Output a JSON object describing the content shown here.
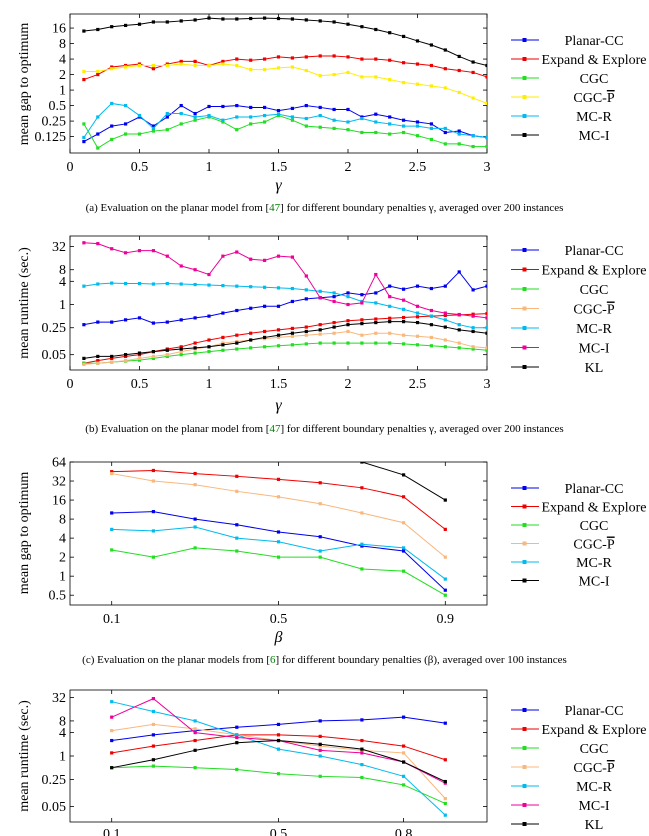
{
  "captions": [
    {
      "prefix": "(a) Evaluation on the planar model from [",
      "ref": "47",
      "suffix": "] for different boundary penalties γ, averaged over 200 instances"
    },
    {
      "prefix": "(b) Evaluation on the planar model from [",
      "ref": "47",
      "suffix": "] for different boundary penalties γ, averaged over 200 instances"
    },
    {
      "prefix": "(c) Evaluation on the planar models from [",
      "ref": "6",
      "suffix": "] for different boundary penalties (β), averaged over 100 instances"
    }
  ],
  "colors": {
    "Planar-CC": "#0000ee",
    "Expand & Explore": "#ee0000",
    "CGC": "#22dd22",
    "CGC-P": "#ffee00",
    "CGC-P-light": "#f9b77c",
    "MC-R": "#00bbee",
    "MC-I": "#ee0099",
    "KL": "#000000",
    "ref": "#008000"
  },
  "chart_data": [
    {
      "type": "line",
      "xlabel": "γ",
      "ylabel": "mean gap to optimum",
      "xlim": [
        0,
        3
      ],
      "ylim": [
        0.06,
        30
      ],
      "yscale": "log",
      "xticks": [
        0,
        0.5,
        1,
        1.5,
        2,
        2.5,
        3
      ],
      "xtick_labels": [
        "0",
        "0.5",
        "1",
        "1.5",
        "2",
        "2.5",
        "3"
      ],
      "yticks": [
        0.125,
        0.25,
        0.5,
        1,
        2,
        4,
        8,
        16
      ],
      "ytick_labels": [
        "0.125",
        "0.25",
        "0.5",
        "1",
        "2",
        "4",
        "8",
        "16"
      ],
      "legend_position": "right",
      "x": [
        0.1,
        0.2,
        0.3,
        0.4,
        0.5,
        0.6,
        0.7,
        0.8,
        0.9,
        1.0,
        1.1,
        1.2,
        1.3,
        1.4,
        1.5,
        1.6,
        1.7,
        1.8,
        1.9,
        2.0,
        2.1,
        2.2,
        2.3,
        2.4,
        2.5,
        2.6,
        2.7,
        2.8,
        2.9,
        3.0
      ],
      "series": [
        {
          "name": "Planar-CC",
          "color_key": "Planar-CC",
          "values": [
            0.1,
            0.14,
            0.2,
            0.22,
            0.3,
            0.2,
            0.3,
            0.5,
            0.35,
            0.48,
            0.48,
            0.5,
            0.46,
            0.46,
            0.4,
            0.44,
            0.5,
            0.46,
            0.42,
            0.42,
            0.3,
            0.34,
            0.3,
            0.26,
            0.24,
            0.22,
            0.15,
            0.16,
            0.13,
            0.12
          ]
        },
        {
          "name": "Expand & Explore",
          "color_key": "Expand & Explore",
          "values": [
            1.6,
            2.0,
            2.8,
            3.0,
            3.2,
            2.6,
            3.2,
            3.6,
            3.6,
            3.0,
            3.6,
            4.0,
            3.8,
            4.0,
            4.4,
            4.2,
            4.4,
            4.6,
            4.6,
            4.4,
            4.0,
            4.0,
            3.8,
            3.4,
            3.2,
            3.0,
            2.6,
            2.4,
            2.2,
            1.8
          ]
        },
        {
          "name": "CGC",
          "color_key": "CGC",
          "values": [
            0.22,
            0.075,
            0.11,
            0.14,
            0.14,
            0.16,
            0.17,
            0.22,
            0.26,
            0.3,
            0.24,
            0.17,
            0.22,
            0.24,
            0.32,
            0.26,
            0.2,
            0.19,
            0.18,
            0.17,
            0.15,
            0.15,
            0.14,
            0.15,
            0.13,
            0.11,
            0.09,
            0.09,
            0.08,
            0.08
          ]
        },
        {
          "name": "CGC-P",
          "color_key": "CGC-P",
          "values": [
            2.3,
            2.3,
            2.6,
            2.8,
            3.0,
            3.0,
            3.0,
            3.2,
            3.0,
            3.0,
            3.2,
            3.0,
            2.5,
            2.5,
            2.7,
            2.8,
            2.4,
            1.9,
            2.0,
            2.2,
            1.8,
            1.8,
            1.6,
            1.4,
            1.3,
            1.2,
            1.1,
            0.9,
            0.7,
            0.55
          ]
        },
        {
          "name": "MC-R",
          "color_key": "MC-R",
          "values": [
            0.12,
            0.3,
            0.55,
            0.5,
            0.32,
            0.18,
            0.35,
            0.35,
            0.3,
            0.32,
            0.26,
            0.3,
            0.3,
            0.32,
            0.34,
            0.3,
            0.28,
            0.32,
            0.26,
            0.24,
            0.28,
            0.24,
            0.22,
            0.2,
            0.2,
            0.18,
            0.18,
            0.14,
            0.13,
            0.12
          ]
        },
        {
          "name": "MC-I",
          "color_key": "KL",
          "values": [
            14,
            15,
            17,
            18,
            19,
            21,
            21,
            22,
            23,
            25,
            24,
            24,
            24.5,
            25,
            24.5,
            24,
            23,
            22,
            21,
            19,
            17,
            15,
            13,
            11,
            9,
            7.5,
            6,
            4.5,
            3.5,
            3.0
          ]
        }
      ]
    },
    {
      "type": "line",
      "xlabel": "γ",
      "ylabel": "mean runtime (sec.)",
      "xlim": [
        0,
        3
      ],
      "ylim": [
        0.02,
        60
      ],
      "yscale": "log",
      "xticks": [
        0,
        0.5,
        1,
        1.5,
        2,
        2.5,
        3
      ],
      "xtick_labels": [
        "0",
        "0.5",
        "1",
        "1.5",
        "2",
        "2.5",
        "3"
      ],
      "yticks": [
        0.05,
        0.25,
        1,
        4,
        8,
        32
      ],
      "ytick_labels": [
        "0.05",
        "0.25",
        "1",
        "4",
        "8",
        "32"
      ],
      "legend_position": "right",
      "x": [
        0.1,
        0.2,
        0.3,
        0.4,
        0.5,
        0.6,
        0.7,
        0.8,
        0.9,
        1.0,
        1.1,
        1.2,
        1.3,
        1.4,
        1.5,
        1.6,
        1.7,
        1.8,
        1.9,
        2.0,
        2.1,
        2.2,
        2.3,
        2.4,
        2.5,
        2.6,
        2.7,
        2.8,
        2.9,
        3.0
      ],
      "series": [
        {
          "name": "Planar-CC",
          "color_key": "Planar-CC",
          "values": [
            0.3,
            0.35,
            0.35,
            0.4,
            0.45,
            0.33,
            0.35,
            0.4,
            0.45,
            0.5,
            0.6,
            0.7,
            0.8,
            0.9,
            0.9,
            1.2,
            1.4,
            1.5,
            1.6,
            2.0,
            1.8,
            2.0,
            3.0,
            2.5,
            3.0,
            2.6,
            3.0,
            7.0,
            2.4,
            3.0
          ]
        },
        {
          "name": "Expand & Explore",
          "color_key": "Expand & Explore",
          "values": [
            0.03,
            0.035,
            0.04,
            0.045,
            0.05,
            0.06,
            0.07,
            0.08,
            0.1,
            0.12,
            0.14,
            0.16,
            0.18,
            0.2,
            0.22,
            0.24,
            0.26,
            0.3,
            0.34,
            0.38,
            0.4,
            0.42,
            0.44,
            0.46,
            0.48,
            0.5,
            0.52,
            0.54,
            0.56,
            0.58
          ]
        },
        {
          "name": "CGC",
          "color_key": "CGC",
          "values": [
            0.03,
            0.03,
            0.032,
            0.034,
            0.036,
            0.04,
            0.045,
            0.05,
            0.055,
            0.06,
            0.065,
            0.07,
            0.075,
            0.08,
            0.085,
            0.09,
            0.095,
            0.1,
            0.1,
            0.1,
            0.1,
            0.1,
            0.1,
            0.095,
            0.09,
            0.085,
            0.08,
            0.075,
            0.07,
            0.065
          ]
        },
        {
          "name": "CGC-P",
          "color_key": "CGC-P-light",
          "values": [
            0.028,
            0.03,
            0.032,
            0.035,
            0.04,
            0.045,
            0.05,
            0.06,
            0.07,
            0.08,
            0.1,
            0.11,
            0.12,
            0.13,
            0.14,
            0.15,
            0.16,
            0.17,
            0.18,
            0.2,
            0.16,
            0.18,
            0.18,
            0.16,
            0.15,
            0.14,
            0.12,
            0.1,
            0.08,
            0.075
          ]
        },
        {
          "name": "MC-R",
          "color_key": "MC-R",
          "values": [
            3.0,
            3.4,
            3.6,
            3.5,
            3.5,
            3.4,
            3.5,
            3.4,
            3.3,
            3.2,
            3.1,
            3.0,
            2.9,
            2.8,
            2.7,
            2.6,
            2.4,
            2.2,
            2.0,
            1.6,
            1.2,
            1.1,
            0.9,
            0.75,
            0.6,
            0.5,
            0.4,
            0.3,
            0.25,
            0.25
          ]
        },
        {
          "name": "MC-I",
          "color_key": "MC-I",
          "values": [
            40,
            38,
            28,
            22,
            25,
            25,
            18,
            10,
            8,
            6,
            18,
            23,
            15,
            14,
            18,
            17,
            5.5,
            1.5,
            1.2,
            1.0,
            1.1,
            6.0,
            1.6,
            1.3,
            0.9,
            0.7,
            0.6,
            0.55,
            0.5,
            0.45
          ]
        },
        {
          "name": "KL",
          "color_key": "KL",
          "values": [
            0.04,
            0.045,
            0.045,
            0.05,
            0.055,
            0.06,
            0.065,
            0.07,
            0.075,
            0.08,
            0.09,
            0.1,
            0.12,
            0.14,
            0.16,
            0.18,
            0.2,
            0.22,
            0.26,
            0.3,
            0.32,
            0.34,
            0.36,
            0.36,
            0.34,
            0.3,
            0.26,
            0.22,
            0.2,
            0.18
          ]
        }
      ]
    },
    {
      "type": "line",
      "xlabel": "β",
      "ylabel": "mean gap to optimum",
      "xlim": [
        0,
        1.0
      ],
      "ylim": [
        0.35,
        64
      ],
      "yscale": "log",
      "xticks": [
        0.1,
        0.5,
        0.9
      ],
      "xtick_labels": [
        "0.1",
        "0.5",
        "0.9"
      ],
      "yticks": [
        0.5,
        1,
        2,
        4,
        8,
        16,
        32,
        64
      ],
      "ytick_labels": [
        "0.5",
        "1",
        "2",
        "4",
        "8",
        "16",
        "32",
        "64"
      ],
      "legend_position": "right",
      "x": [
        0.1,
        0.2,
        0.3,
        0.4,
        0.5,
        0.6,
        0.7,
        0.8,
        0.9
      ],
      "series": [
        {
          "name": "Planar-CC",
          "color_key": "Planar-CC",
          "values": [
            10,
            10.5,
            8,
            6.5,
            5,
            4.2,
            3,
            2.5,
            0.6
          ]
        },
        {
          "name": "Expand & Explore",
          "color_key": "Expand & Explore",
          "values": [
            45,
            47,
            42,
            38,
            34,
            30,
            25,
            18,
            5.5
          ]
        },
        {
          "name": "CGC",
          "color_key": "CGC",
          "values": [
            2.6,
            2.0,
            2.8,
            2.5,
            2.0,
            2.0,
            1.3,
            1.2,
            0.5
          ]
        },
        {
          "name": "CGC-P",
          "color_key": "CGC-P-light",
          "values": [
            42,
            32,
            28,
            22,
            18,
            14,
            10,
            7,
            2.0
          ]
        },
        {
          "name": "MC-R",
          "color_key": "MC-R",
          "values": [
            5.5,
            5.2,
            6.0,
            4.0,
            3.5,
            2.5,
            3.2,
            2.8,
            0.9
          ]
        },
        {
          "name": "MC-I",
          "color_key": "KL",
          "values": [
            null,
            null,
            null,
            null,
            null,
            null,
            64,
            40,
            16
          ]
        }
      ]
    },
    {
      "type": "line",
      "xlabel": "",
      "ylabel": "mean runtime (sec.)",
      "xlim": [
        0,
        1.0
      ],
      "ylim": [
        0.02,
        50
      ],
      "yscale": "log",
      "xticks": [
        0.1,
        0.5,
        0.8
      ],
      "xtick_labels": [
        "0.1",
        "0.5",
        "0.8"
      ],
      "yticks": [
        0.05,
        0.25,
        1,
        4,
        8,
        32
      ],
      "ytick_labels": [
        "0.05",
        "0.25",
        "1",
        "4",
        "8",
        "32"
      ],
      "legend_position": "right",
      "x": [
        0.1,
        0.2,
        0.3,
        0.4,
        0.5,
        0.6,
        0.7,
        0.8,
        0.9
      ],
      "series": [
        {
          "name": "Planar-CC",
          "color_key": "Planar-CC",
          "values": [
            2.5,
            3.5,
            4.5,
            5.5,
            6.5,
            8,
            8.5,
            10,
            7
          ]
        },
        {
          "name": "Expand & Explore",
          "color_key": "Expand & Explore",
          "values": [
            1.2,
            1.8,
            2.5,
            3.5,
            3.5,
            3.2,
            2.5,
            1.8,
            0.8
          ]
        },
        {
          "name": "CGC",
          "color_key": "CGC",
          "values": [
            0.5,
            0.55,
            0.5,
            0.45,
            0.35,
            0.3,
            0.28,
            0.18,
            0.06
          ]
        },
        {
          "name": "CGC-P",
          "color_key": "CGC-P-light",
          "values": [
            4.5,
            6.5,
            5.0,
            3.5,
            2.5,
            1.8,
            1.4,
            1.2,
            0.08
          ]
        },
        {
          "name": "MC-R",
          "color_key": "MC-R",
          "values": [
            25,
            14,
            8,
            3.5,
            1.5,
            1.0,
            0.6,
            0.3,
            0.03
          ]
        },
        {
          "name": "MC-I",
          "color_key": "MC-I",
          "values": [
            10,
            30,
            4,
            3,
            2.5,
            1.4,
            1.2,
            0.7,
            0.2
          ]
        },
        {
          "name": "KL",
          "color_key": "KL",
          "values": [
            0.5,
            0.8,
            1.4,
            2.2,
            2.5,
            2.0,
            1.5,
            0.7,
            0.22
          ]
        }
      ]
    }
  ]
}
